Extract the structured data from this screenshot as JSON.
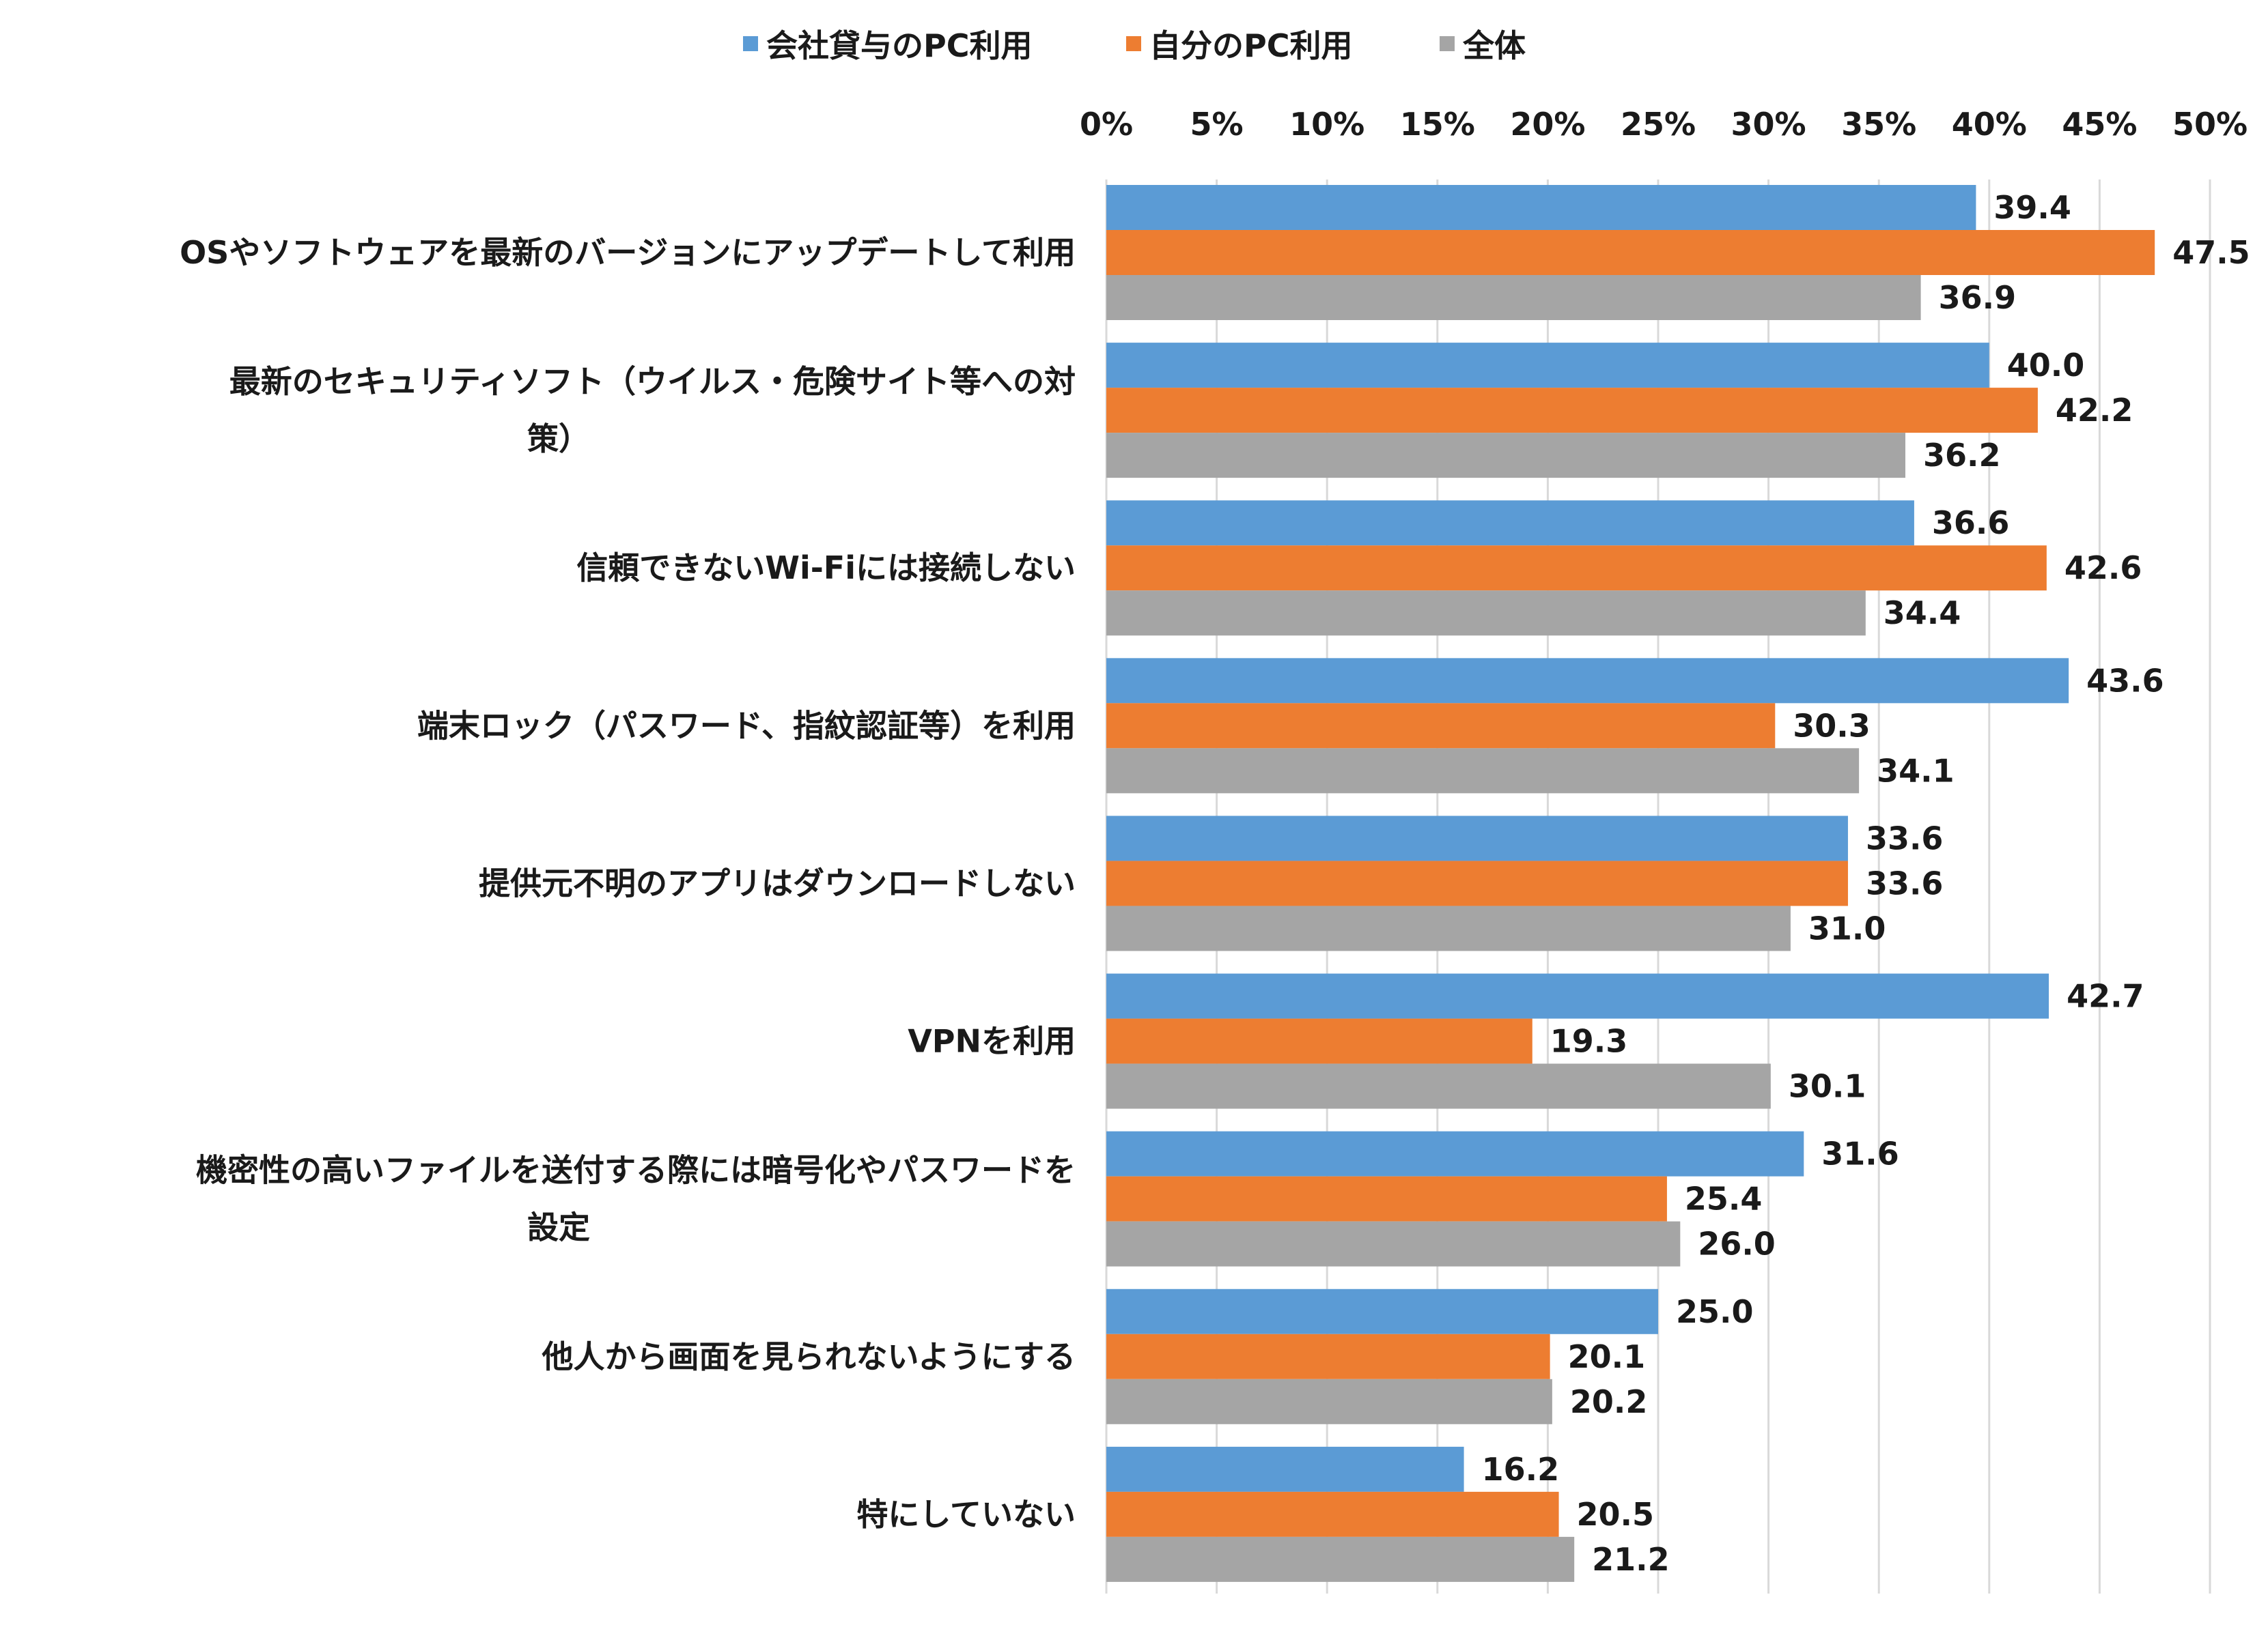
{
  "chart_data": {
    "type": "bar",
    "orientation": "horizontal",
    "legend_position": "top",
    "grid": true,
    "xlim": [
      0,
      50
    ],
    "x_ticks": [
      0,
      5,
      10,
      15,
      20,
      25,
      30,
      35,
      40,
      45,
      50
    ],
    "x_tick_labels": [
      "0%",
      "5%",
      "10%",
      "15%",
      "20%",
      "25%",
      "30%",
      "35%",
      "40%",
      "45%",
      "50%"
    ],
    "categories": [
      [
        "OSやソフトウェアを最新のバージョンにアップデートして利用"
      ],
      [
        "最新のセキュリティソフト（ウイルス・危険サイト等への対",
        "策）"
      ],
      [
        "信頼できないWi-Fiには接続しない"
      ],
      [
        "端末ロック（パスワード、指紋認証等）を利用"
      ],
      [
        "提供元不明のアプリはダウンロードしない"
      ],
      [
        "VPNを利用"
      ],
      [
        "機密性の高いファイルを送付する際には暗号化やパスワードを",
        "設定"
      ],
      [
        "他人から画面を見られないようにする"
      ],
      [
        "特にしていない"
      ]
    ],
    "series": [
      {
        "name": "会社貸与のPC利用",
        "color": "#5b9bd5",
        "values": [
          39.4,
          40.0,
          36.6,
          43.6,
          33.6,
          42.7,
          31.6,
          25.0,
          16.2
        ]
      },
      {
        "name": "自分のPC利用",
        "color": "#ed7d31",
        "values": [
          47.5,
          42.2,
          42.6,
          30.3,
          33.6,
          19.3,
          25.4,
          20.1,
          20.5
        ]
      },
      {
        "name": "全体",
        "color": "#a5a5a5",
        "values": [
          36.9,
          36.2,
          34.4,
          34.1,
          31.0,
          30.1,
          26.0,
          20.2,
          21.2
        ]
      }
    ],
    "value_format": "0.0"
  }
}
